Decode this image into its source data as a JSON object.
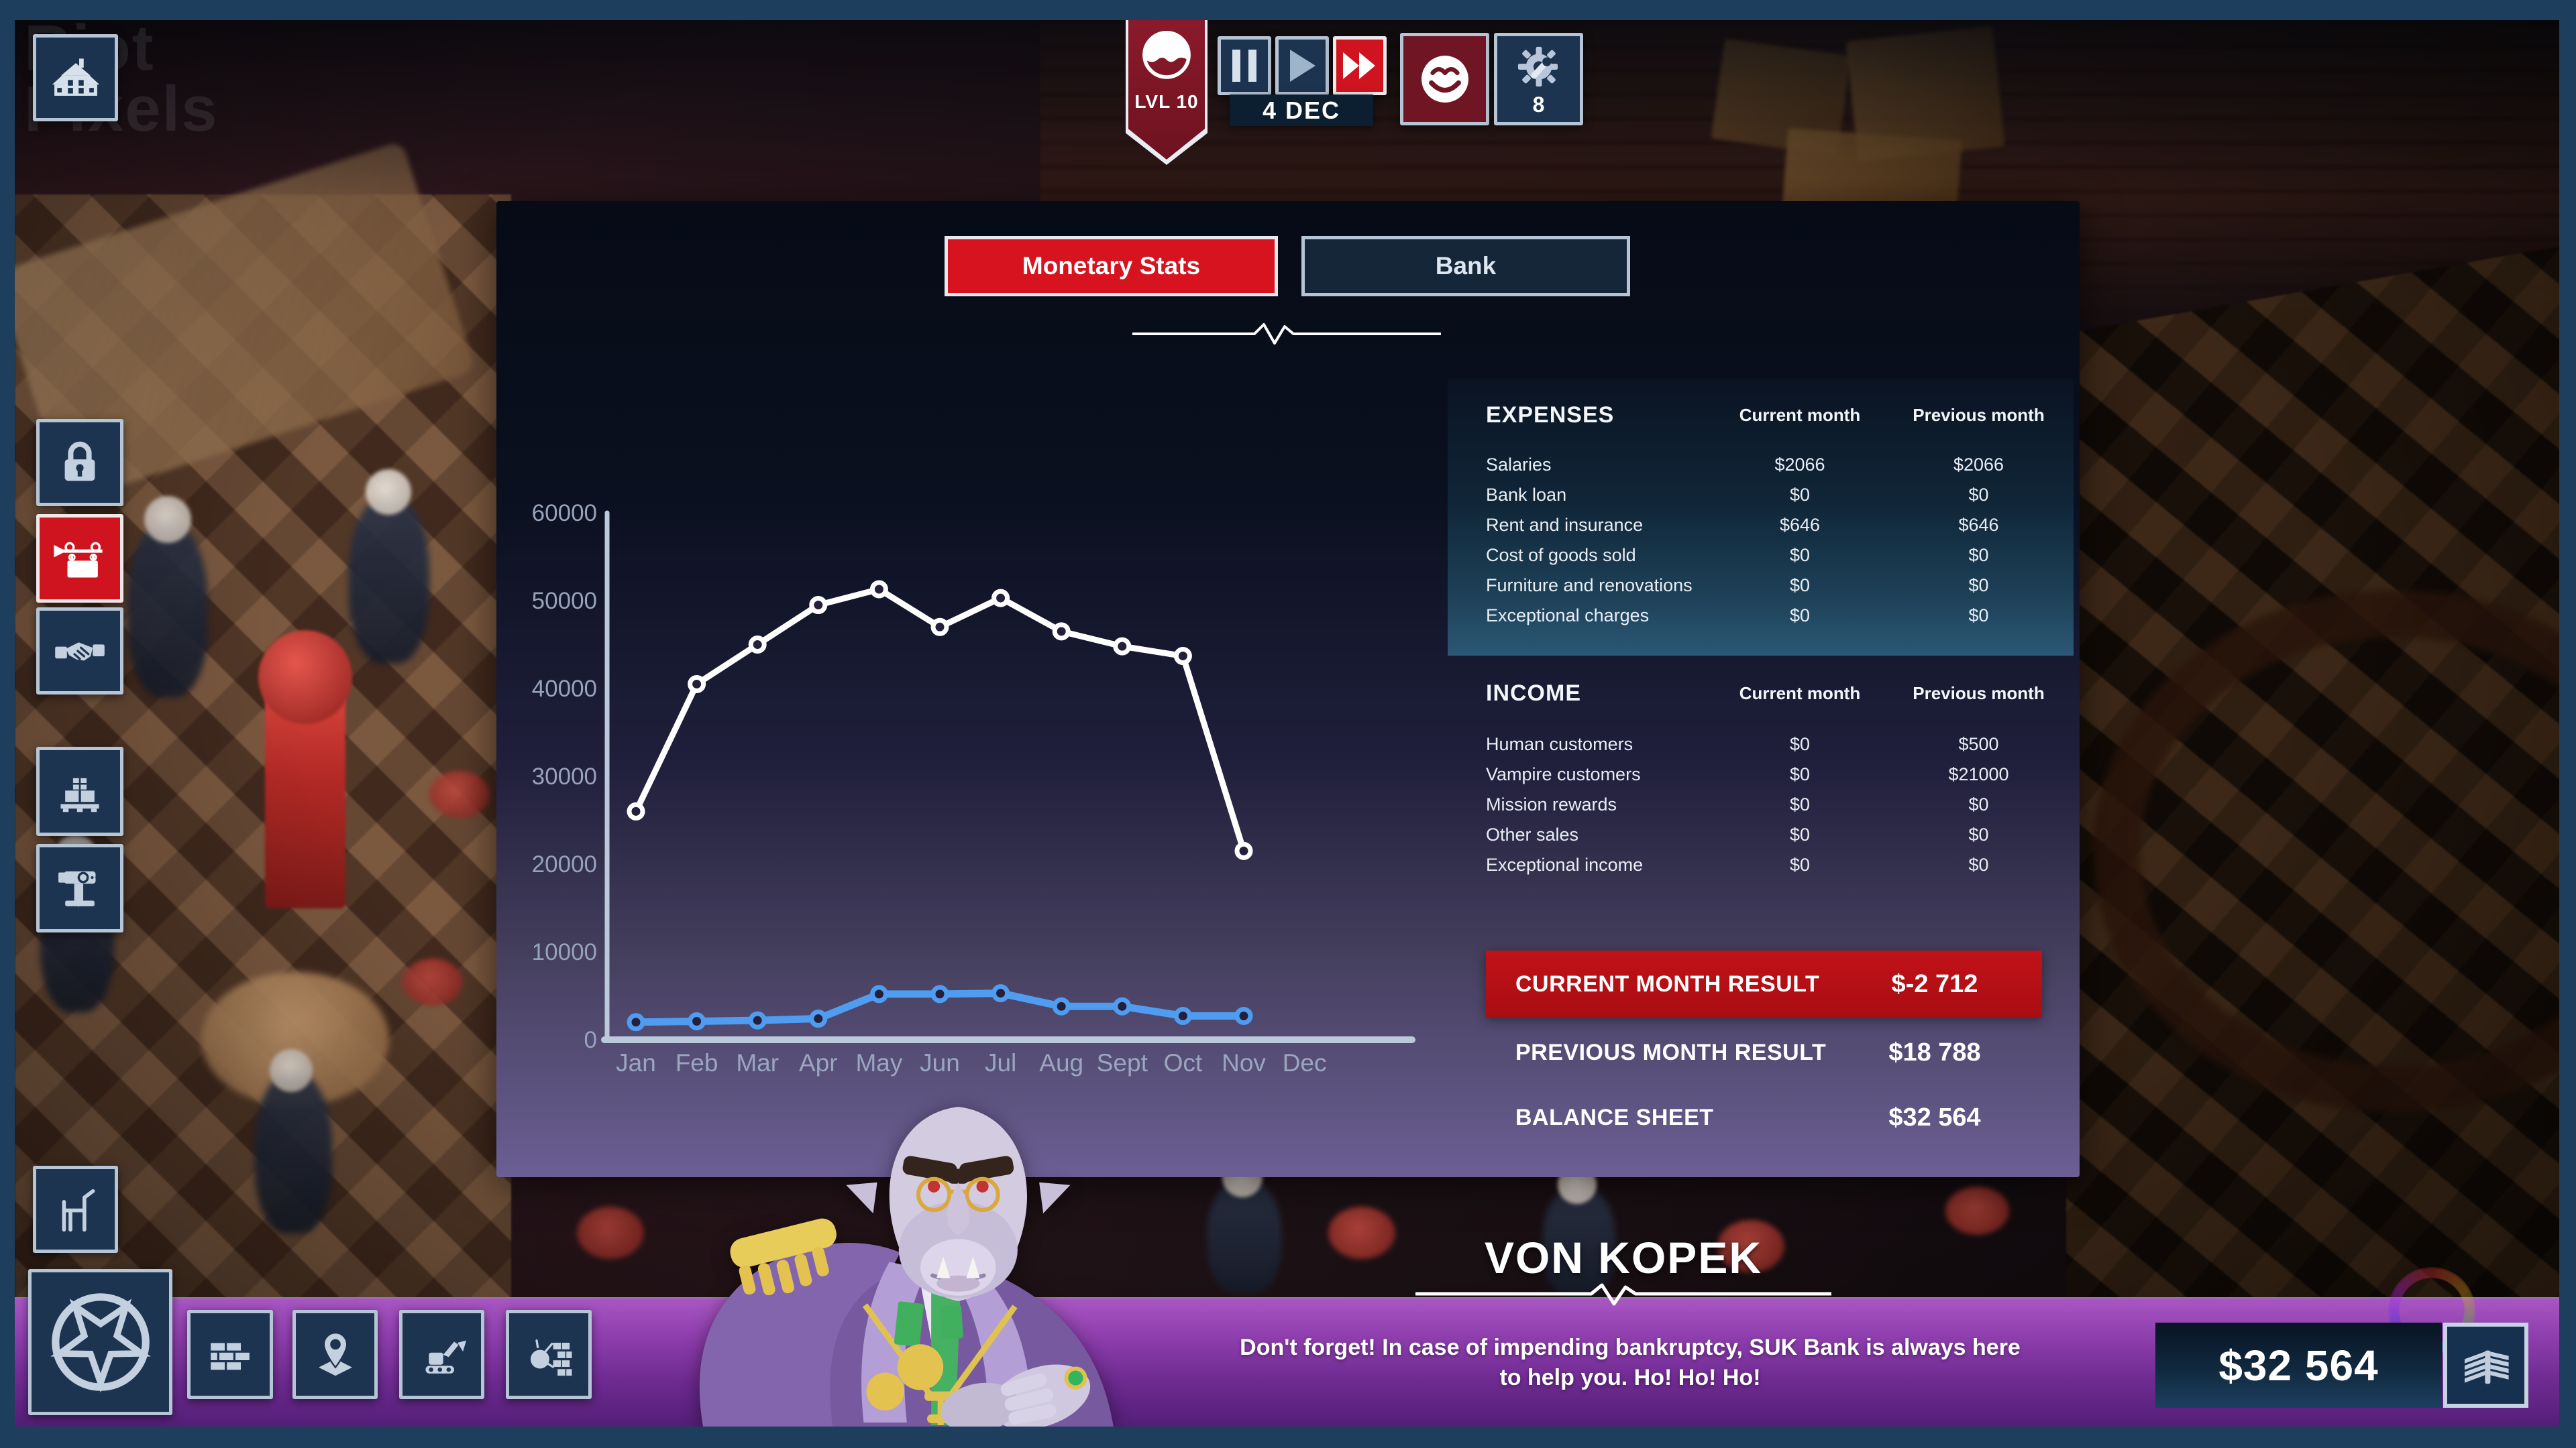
{
  "watermark": {
    "line1": "Riot",
    "line2": "Pixels"
  },
  "top_bar": {
    "level_badge": {
      "label": "LVL 10",
      "icon": "vampire-face-icon"
    },
    "time_controls": {
      "pause_icon": "pause-icon",
      "play_icon": "play-icon",
      "fast_forward_icon": "fast-forward-icon",
      "date": "4 DEC"
    },
    "mood_button": {
      "icon": "smiley-icon"
    },
    "settings_button": {
      "icon": "gear-wrench-icon",
      "badge": "8"
    }
  },
  "left_toolbar": {
    "top_items": [
      "haunted-house",
      "lock",
      "shop-sign",
      "handshake",
      "pallet-boxes",
      "drill-press"
    ],
    "bottom_items": [
      "chair",
      "pentagram",
      "bricks",
      "map-pin",
      "excavator",
      "wrecking-ball"
    ]
  },
  "tabs": [
    {
      "label": "Monetary Stats",
      "active": true
    },
    {
      "label": "Bank",
      "active": false
    }
  ],
  "expenses": {
    "title": "EXPENSES",
    "columns": [
      "Current month",
      "Previous month"
    ],
    "rows": [
      {
        "label": "Salaries",
        "current": "$2066",
        "previous": "$2066"
      },
      {
        "label": "Bank loan",
        "current": "$0",
        "previous": "$0"
      },
      {
        "label": "Rent and insurance",
        "current": "$646",
        "previous": "$646"
      },
      {
        "label": "Cost of goods sold",
        "current": "$0",
        "previous": "$0"
      },
      {
        "label": "Furniture and renovations",
        "current": "$0",
        "previous": "$0"
      },
      {
        "label": "Exceptional charges",
        "current": "$0",
        "previous": "$0"
      }
    ]
  },
  "income": {
    "title": "INCOME",
    "columns": [
      "Current month",
      "Previous month"
    ],
    "rows": [
      {
        "label": "Human customers",
        "current": "$0",
        "previous": "$500"
      },
      {
        "label": "Vampire customers",
        "current": "$0",
        "previous": "$21000"
      },
      {
        "label": "Mission rewards",
        "current": "$0",
        "previous": "$0"
      },
      {
        "label": "Other sales",
        "current": "$0",
        "previous": "$0"
      },
      {
        "label": "Exceptional income",
        "current": "$0",
        "previous": "$0"
      }
    ]
  },
  "results": {
    "current": {
      "label": "CURRENT MONTH RESULT",
      "value": "$-2 712"
    },
    "previous": {
      "label": "PREVIOUS MONTH RESULT",
      "value": "$18 788"
    },
    "balance": {
      "label": "BALANCE SHEET",
      "value": "$32 564"
    }
  },
  "chart_data": {
    "type": "line",
    "title": "",
    "categories": [
      "Jan",
      "Feb",
      "Mar",
      "Apr",
      "May",
      "Jun",
      "Jul",
      "Aug",
      "Sept",
      "Oct",
      "Nov",
      "Dec"
    ],
    "series": [
      {
        "name": "income",
        "color": "#ffffff",
        "values": [
          26000,
          40500,
          45000,
          49500,
          51300,
          47000,
          50300,
          46500,
          44800,
          43700,
          21500
        ]
      },
      {
        "name": "expenses",
        "color": "#4f9cf0",
        "values": [
          2000,
          2100,
          2200,
          2400,
          5200,
          5200,
          5300,
          3800,
          3800,
          2712,
          2712
        ]
      }
    ],
    "ylim": [
      0,
      60000
    ],
    "yticks": [
      0,
      10000,
      20000,
      30000,
      40000,
      50000,
      60000
    ],
    "grid": false,
    "legend": "none"
  },
  "advisor": {
    "name": "VON KOPEK",
    "message": "Don't forget! In case of impending bankruptcy, SUK Bank is always here to help you. Ho! Ho! Ho!"
  },
  "wallet": {
    "amount": "$32 564",
    "icon": "money-stack-icon"
  },
  "colors": {
    "accent_red": "#cf1420",
    "hud_navy": "#1d3450",
    "button_border": "#b6c5d6",
    "banner_red": "#b80f15",
    "chart_income": "#ffffff",
    "chart_expenses": "#4f9cf0",
    "purple_bar_top": "#a756c2",
    "purple_bar_bottom": "#521e76"
  }
}
